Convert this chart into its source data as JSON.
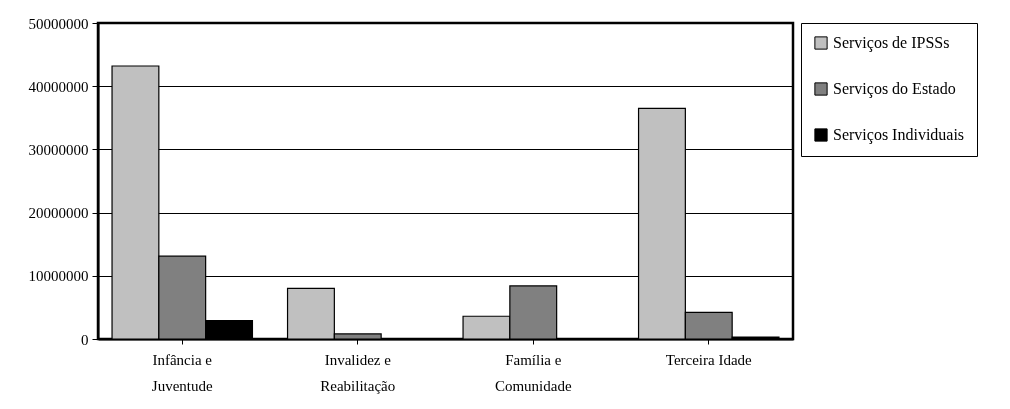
{
  "chart_data": {
    "type": "bar",
    "categories": [
      "Infância e Juventude",
      "Invalidez e Reabilitação",
      "Família e Comunidade",
      "Terceira Idade"
    ],
    "series": [
      {
        "name": "Serviços de IPSSs",
        "color": "#c0c0c0",
        "values": [
          43200000,
          8000000,
          3600000,
          36500000
        ]
      },
      {
        "name": "Serviços do Estado",
        "color": "#808080",
        "values": [
          13100000,
          800000,
          8400000,
          4200000
        ]
      },
      {
        "name": "Serviços Individuais",
        "color": "#000000",
        "values": [
          2900000,
          0,
          0,
          300000
        ]
      }
    ],
    "ylim": [
      0,
      50000000
    ],
    "yticks": [
      0,
      10000000,
      20000000,
      30000000,
      40000000,
      50000000
    ],
    "grid": "y",
    "legend": "right"
  }
}
